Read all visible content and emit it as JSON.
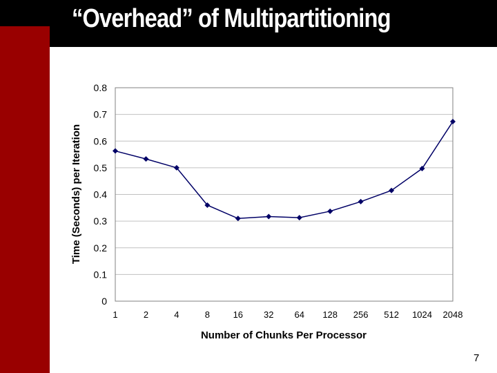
{
  "slide": {
    "title": "“Overhead” of Multipartitioning",
    "page_number": "7"
  },
  "colors": {
    "title_bar": "#000000",
    "side_bar": "#990000",
    "series": "#000066",
    "grid": "#c0c0c0"
  },
  "chart_data": {
    "type": "line",
    "title": "",
    "xlabel": "Number of Chunks Per Processor",
    "ylabel": "Time (Seconds) per Iteration",
    "categories": [
      "1",
      "2",
      "4",
      "8",
      "16",
      "32",
      "64",
      "128",
      "256",
      "512",
      "1024",
      "2048"
    ],
    "yticks": [
      "0",
      "0.1",
      "0.2",
      "0.3",
      "0.4",
      "0.5",
      "0.6",
      "0.7",
      "0.8"
    ],
    "ylim": [
      0,
      0.8
    ],
    "grid": true,
    "legend": "none",
    "marker": "diamond",
    "series": [
      {
        "values": [
          0.563,
          0.533,
          0.5,
          0.36,
          0.31,
          0.317,
          0.313,
          0.337,
          0.373,
          0.415,
          0.497,
          0.673
        ]
      }
    ]
  }
}
